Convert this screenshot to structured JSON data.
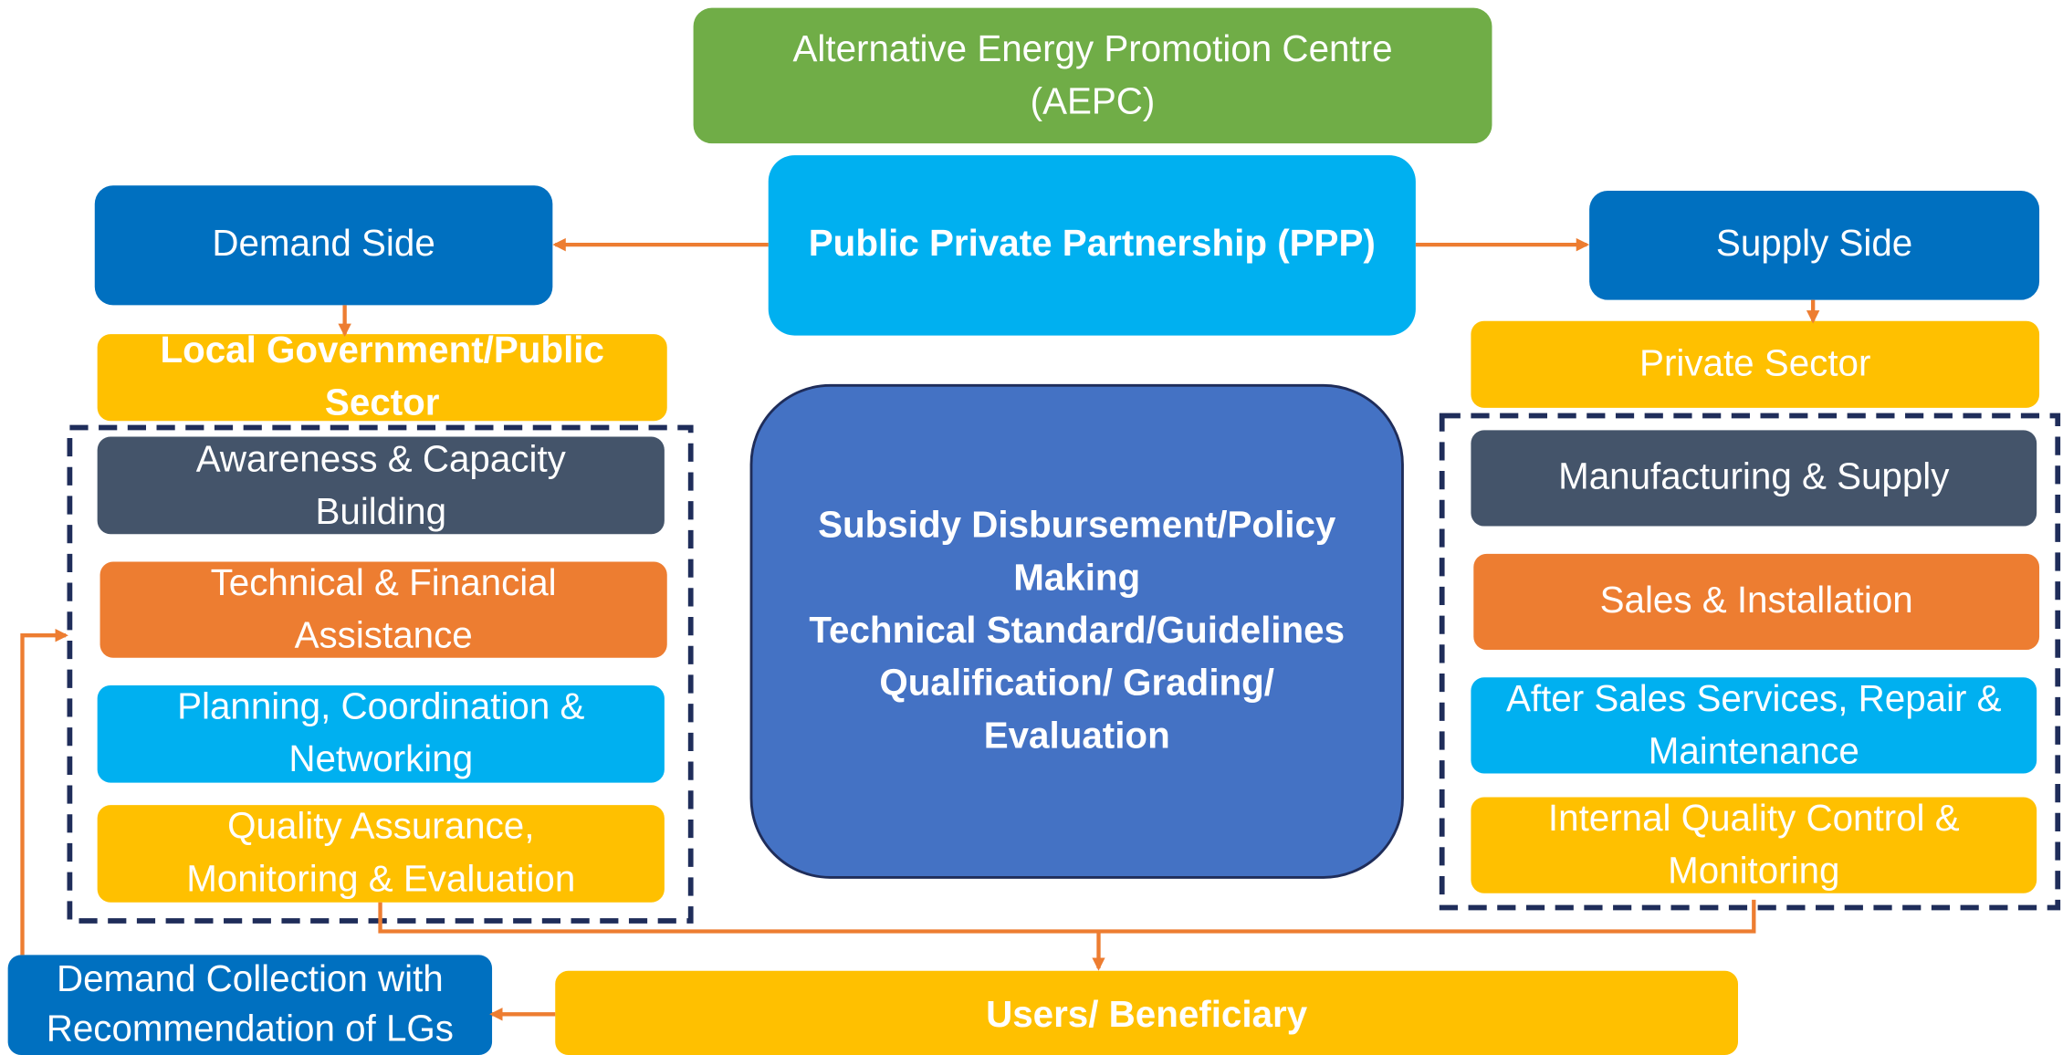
{
  "nodes": [
    {
      "lines": [
        "Alternative Energy Promotion Centre",
        "(AEPC)"
      ]
    },
    {
      "lines": [
        "Public Private Partnership (PPP)"
      ]
    },
    {
      "lines": [
        "Demand Side"
      ]
    },
    {
      "lines": [
        "Supply Side"
      ]
    },
    {
      "lines": [
        "Local Government/Public",
        "Sector"
      ]
    },
    {
      "lines": [
        "Private Sector"
      ]
    },
    {
      "lines": [
        "Awareness & Capacity",
        "Building"
      ]
    },
    {
      "lines": [
        "Technical & Financial",
        "Assistance"
      ]
    },
    {
      "lines": [
        "Planning, Coordination &",
        "Networking"
      ]
    },
    {
      "lines": [
        "Quality Assurance,",
        "Monitoring & Evaluation"
      ]
    },
    {
      "lines": [
        "Subsidy Disbursement/Policy",
        "Making",
        "Technical Standard/Guidelines",
        "Qualification/ Grading/",
        "Evaluation"
      ]
    },
    {
      "lines": [
        "Manufacturing & Supply"
      ]
    },
    {
      "lines": [
        "Sales & Installation"
      ]
    },
    {
      "lines": [
        "After Sales Services, Repair &",
        "Maintenance"
      ]
    },
    {
      "lines": [
        "Internal Quality Control &",
        "Monitoring"
      ]
    },
    {
      "lines": [
        "Demand Collection with",
        "Recommendation of LGs"
      ]
    },
    {
      "lines": [
        "Users/ Beneficiary"
      ]
    }
  ]
}
